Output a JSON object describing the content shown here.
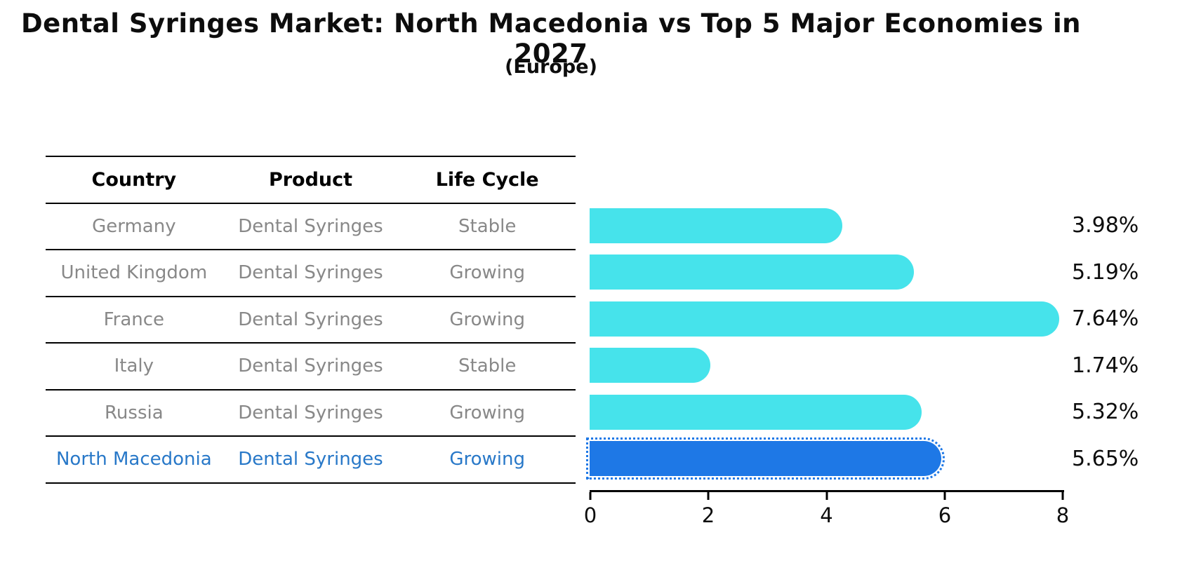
{
  "title": "Dental Syringes Market: North Macedonia vs Top 5 Major Economies in 2027",
  "subtitle": "(Europe)",
  "table": {
    "headers": [
      "Country",
      "Product",
      "Life Cycle"
    ],
    "rows": [
      {
        "country": "Germany",
        "product": "Dental Syringes",
        "life_cycle": "Stable",
        "highlight": false
      },
      {
        "country": "United Kingdom",
        "product": "Dental Syringes",
        "life_cycle": "Growing",
        "highlight": false
      },
      {
        "country": "France",
        "product": "Dental Syringes",
        "life_cycle": "Growing",
        "highlight": false
      },
      {
        "country": "Italy",
        "product": "Dental Syringes",
        "life_cycle": "Stable",
        "highlight": false
      },
      {
        "country": "Russia",
        "product": "Dental Syringes",
        "life_cycle": "Growing",
        "highlight": false
      },
      {
        "country": "North Macedonia",
        "product": "Dental Syringes",
        "life_cycle": "Growing",
        "highlight": true
      }
    ]
  },
  "chart_data": {
    "type": "bar",
    "orientation": "horizontal",
    "title": "Dental Syringes Market: North Macedonia vs Top 5 Major Economies in 2027",
    "subtitle": "(Europe)",
    "categories": [
      "Germany",
      "United Kingdom",
      "France",
      "Italy",
      "Russia",
      "North Macedonia"
    ],
    "values": [
      3.98,
      5.19,
      7.64,
      1.74,
      5.32,
      5.65
    ],
    "value_labels": [
      "3.98%",
      "5.19%",
      "7.64%",
      "1.74%",
      "5.32%",
      "5.65%"
    ],
    "xticks": [
      "0",
      "2",
      "4",
      "6",
      "8"
    ],
    "xlim": [
      0,
      8
    ],
    "grid": false,
    "legend": false,
    "bar_color": "#46e3eb",
    "highlight_bar_color": "#1e78e6",
    "highlight_text_color": "#2878c8",
    "table_text_color": "#888888",
    "highlight_index": 5
  }
}
